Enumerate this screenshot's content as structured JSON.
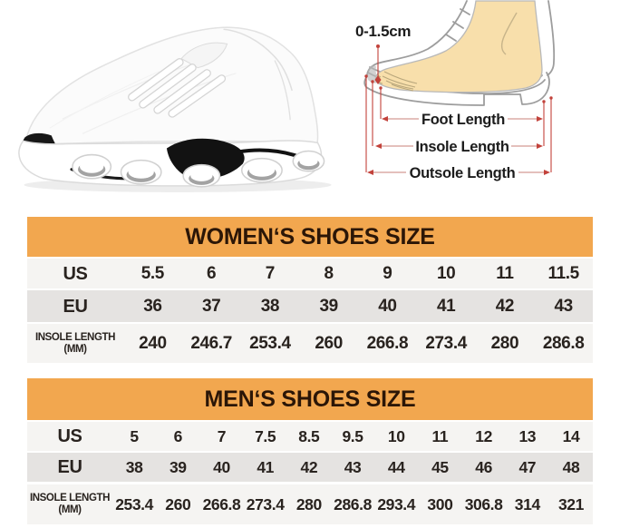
{
  "colors": {
    "banner-orange": "#F2A74F",
    "banner-text": "#2B1607",
    "row-light": "#F5F4F2",
    "row-dark": "#E5E3E1",
    "table-text": "#29231F",
    "measure-red": "#C2423B",
    "measure-dash": "#D49B94",
    "foot-skin": "#F8DFAB"
  },
  "diagram": {
    "toe_gap_label": "0-1.5cm",
    "foot_length_label": "Foot Length",
    "insole_length_label": "Insole Length",
    "outsole_length_label": "Outsole Length"
  },
  "women_section": {
    "title": "WOMEN‘S SHOES SIZE",
    "rows": [
      {
        "key": "us",
        "label": "US",
        "values": [
          "5.5",
          "6",
          "7",
          "8",
          "9",
          "10",
          "11",
          "11.5"
        ]
      },
      {
        "key": "eu",
        "label": "EU",
        "values": [
          "36",
          "37",
          "38",
          "39",
          "40",
          "41",
          "42",
          "43"
        ]
      },
      {
        "key": "insole",
        "label": "INSOLE LENGTH",
        "sublabel": "(MM)",
        "values": [
          "240",
          "246.7",
          "253.4",
          "260",
          "266.8",
          "273.4",
          "280",
          "286.8"
        ]
      }
    ]
  },
  "men_section": {
    "title": "MEN‘S SHOES SIZE",
    "rows": [
      {
        "key": "us",
        "label": "US",
        "values": [
          "5",
          "6",
          "7",
          "7.5",
          "8.5",
          "9.5",
          "10",
          "11",
          "12",
          "13",
          "14"
        ]
      },
      {
        "key": "eu",
        "label": "EU",
        "values": [
          "38",
          "39",
          "40",
          "41",
          "42",
          "43",
          "44",
          "45",
          "46",
          "47",
          "48"
        ]
      },
      {
        "key": "insole",
        "label": "INSOLE LENGTH",
        "sublabel": "(MM)",
        "values": [
          "253.4",
          "260",
          "266.8",
          "273.4",
          "280",
          "286.8",
          "293.4",
          "300",
          "306.8",
          "314",
          "321"
        ]
      }
    ]
  }
}
